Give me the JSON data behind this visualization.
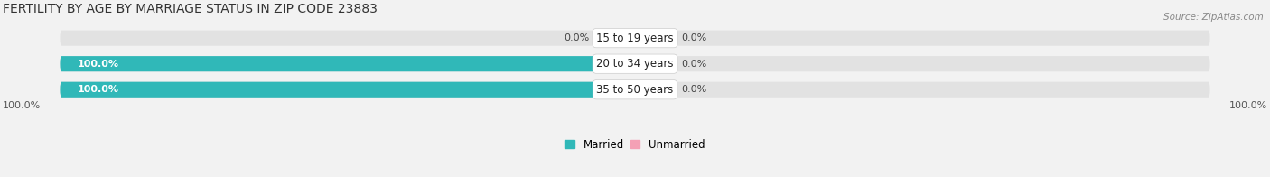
{
  "title": "FERTILITY BY AGE BY MARRIAGE STATUS IN ZIP CODE 23883",
  "source": "Source: ZipAtlas.com",
  "categories": [
    "15 to 19 years",
    "20 to 34 years",
    "35 to 50 years"
  ],
  "married": [
    0.0,
    100.0,
    100.0
  ],
  "unmarried": [
    0.0,
    0.0,
    0.0
  ],
  "married_color": "#30b8b8",
  "unmarried_color": "#f4a0b5",
  "bg_color": "#f2f2f2",
  "bar_bg_color": "#e2e2e2",
  "title_fontsize": 10,
  "label_fontsize": 8.5,
  "value_fontsize": 8,
  "tick_fontsize": 8,
  "source_fontsize": 7.5,
  "legend_fontsize": 8.5,
  "left_bottom_label": "100.0%",
  "right_bottom_label": "100.0%"
}
